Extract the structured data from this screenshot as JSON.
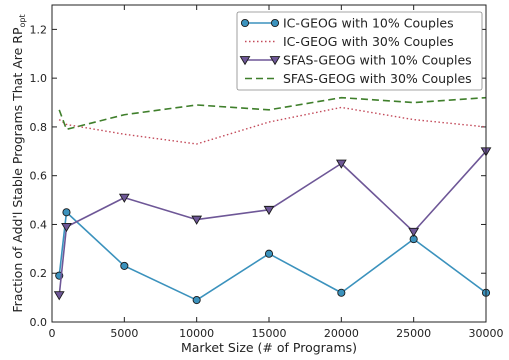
{
  "chart_data": {
    "type": "line",
    "title": "",
    "xlabel": "Market Size (# of Programs)",
    "ylabel": "Fraction of Add'l Stable Programs That Are RP",
    "ylabel_subscript": "opt",
    "xlim": [
      0,
      30000
    ],
    "ylim": [
      0.0,
      1.3
    ],
    "xticks": [
      0,
      5000,
      10000,
      15000,
      20000,
      25000,
      30000
    ],
    "yticks": [
      "0.0",
      "0.2",
      "0.4",
      "0.6",
      "0.8",
      "1.0",
      "1.2"
    ],
    "grid": false,
    "legend_position": "top-right",
    "series": [
      {
        "name": "IC-GEOG with 10% Couples",
        "color": "#3b92bd",
        "style": "solid",
        "marker": "circle",
        "x": [
          500,
          1000,
          5000,
          10000,
          15000,
          20000,
          25000,
          30000
        ],
        "y": [
          0.19,
          0.45,
          0.23,
          0.09,
          0.28,
          0.12,
          0.34,
          0.12
        ]
      },
      {
        "name": "IC-GEOG with 30% Couples",
        "color": "#c34a5a",
        "style": "dotted",
        "marker": "none",
        "x": [
          500,
          1000,
          5000,
          10000,
          15000,
          20000,
          25000,
          30000
        ],
        "y": [
          0.83,
          0.81,
          0.77,
          0.73,
          0.82,
          0.88,
          0.83,
          0.8
        ]
      },
      {
        "name": "SFAS-GEOG with 10% Couples",
        "color": "#6e5797",
        "style": "solid",
        "marker": "triangle-down",
        "x": [
          500,
          1000,
          5000,
          10000,
          15000,
          20000,
          25000,
          30000
        ],
        "y": [
          0.11,
          0.39,
          0.51,
          0.42,
          0.46,
          0.65,
          0.37,
          0.7
        ]
      },
      {
        "name": "SFAS-GEOG with 30% Couples",
        "color": "#3f7f2b",
        "style": "dashed",
        "marker": "none",
        "x": [
          500,
          1000,
          5000,
          10000,
          15000,
          20000,
          25000,
          30000
        ],
        "y": [
          0.87,
          0.79,
          0.85,
          0.89,
          0.87,
          0.92,
          0.9,
          0.92
        ]
      }
    ]
  }
}
